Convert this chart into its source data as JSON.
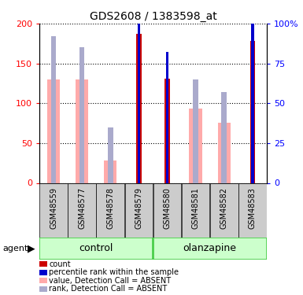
{
  "title": "GDS2608 / 1383598_at",
  "samples": [
    "GSM48559",
    "GSM48577",
    "GSM48578",
    "GSM48579",
    "GSM48580",
    "GSM48581",
    "GSM48582",
    "GSM48583"
  ],
  "count_values": [
    null,
    null,
    null,
    187,
    131,
    null,
    null,
    178
  ],
  "percentile_values": [
    null,
    null,
    null,
    100,
    82,
    null,
    null,
    100
  ],
  "absent_value_values": [
    130,
    130,
    28,
    null,
    null,
    93,
    76,
    null
  ],
  "absent_rank_values": [
    92,
    85,
    35,
    null,
    null,
    65,
    57,
    null
  ],
  "left_ticks": [
    0,
    50,
    100,
    150,
    200
  ],
  "right_ticks": [
    0,
    25,
    50,
    75,
    100
  ],
  "color_count": "#cc0000",
  "color_percentile": "#0000cc",
  "color_absent_value": "#ffaaaa",
  "color_absent_rank": "#aaaacc",
  "group_label_control": "control",
  "group_label_olanzapine": "olanzapine",
  "agent_label": "agent",
  "legend_items": [
    {
      "label": "count",
      "color": "#cc0000"
    },
    {
      "label": "percentile rank within the sample",
      "color": "#0000cc"
    },
    {
      "label": "value, Detection Call = ABSENT",
      "color": "#ffaaaa"
    },
    {
      "label": "rank, Detection Call = ABSENT",
      "color": "#aaaacc"
    }
  ],
  "group_bg_light": "#ccffcc",
  "group_bg_dark": "#44cc44",
  "sample_box_color": "#cccccc"
}
